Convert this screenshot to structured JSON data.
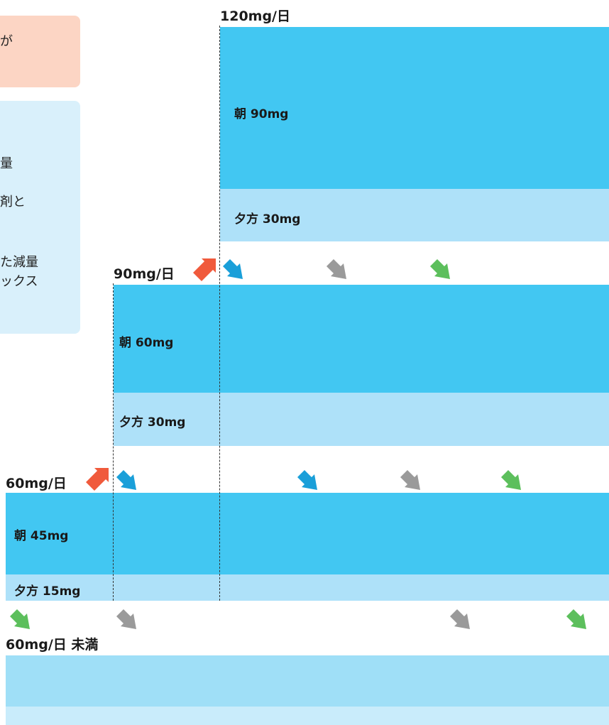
{
  "sidebar": {
    "pink_note_fragment": "が",
    "blue_note_fragments": [
      "量",
      "剤と",
      "た減量",
      "ックス"
    ]
  },
  "levels": {
    "l120": {
      "label": "120mg/日",
      "morning": "朝 90mg",
      "evening": "夕方 30mg"
    },
    "l90": {
      "label": "90mg/日",
      "morning": "朝 60mg",
      "evening": "夕方 30mg"
    },
    "l60": {
      "label": "60mg/日",
      "morning": "朝 45mg",
      "evening": "夕方 15mg"
    },
    "l_under60": {
      "label": "60mg/日 未満"
    }
  },
  "arrow_legend": {
    "up": "increase-arrow",
    "down_blue": "decrease-arrow-blue",
    "down_gray": "decrease-arrow-gray",
    "down_green": "decrease-arrow-green"
  },
  "colors": {
    "morning_band": "#42c7f2",
    "evening_band": "#aee1f9",
    "up_arrow": "#f05a3c",
    "down_blue": "#1a9fd9",
    "down_gray": "#9a9a9a",
    "down_green": "#5cbf5c",
    "pink_note": "#fcd5c4",
    "blue_note": "#d9f0fb"
  }
}
